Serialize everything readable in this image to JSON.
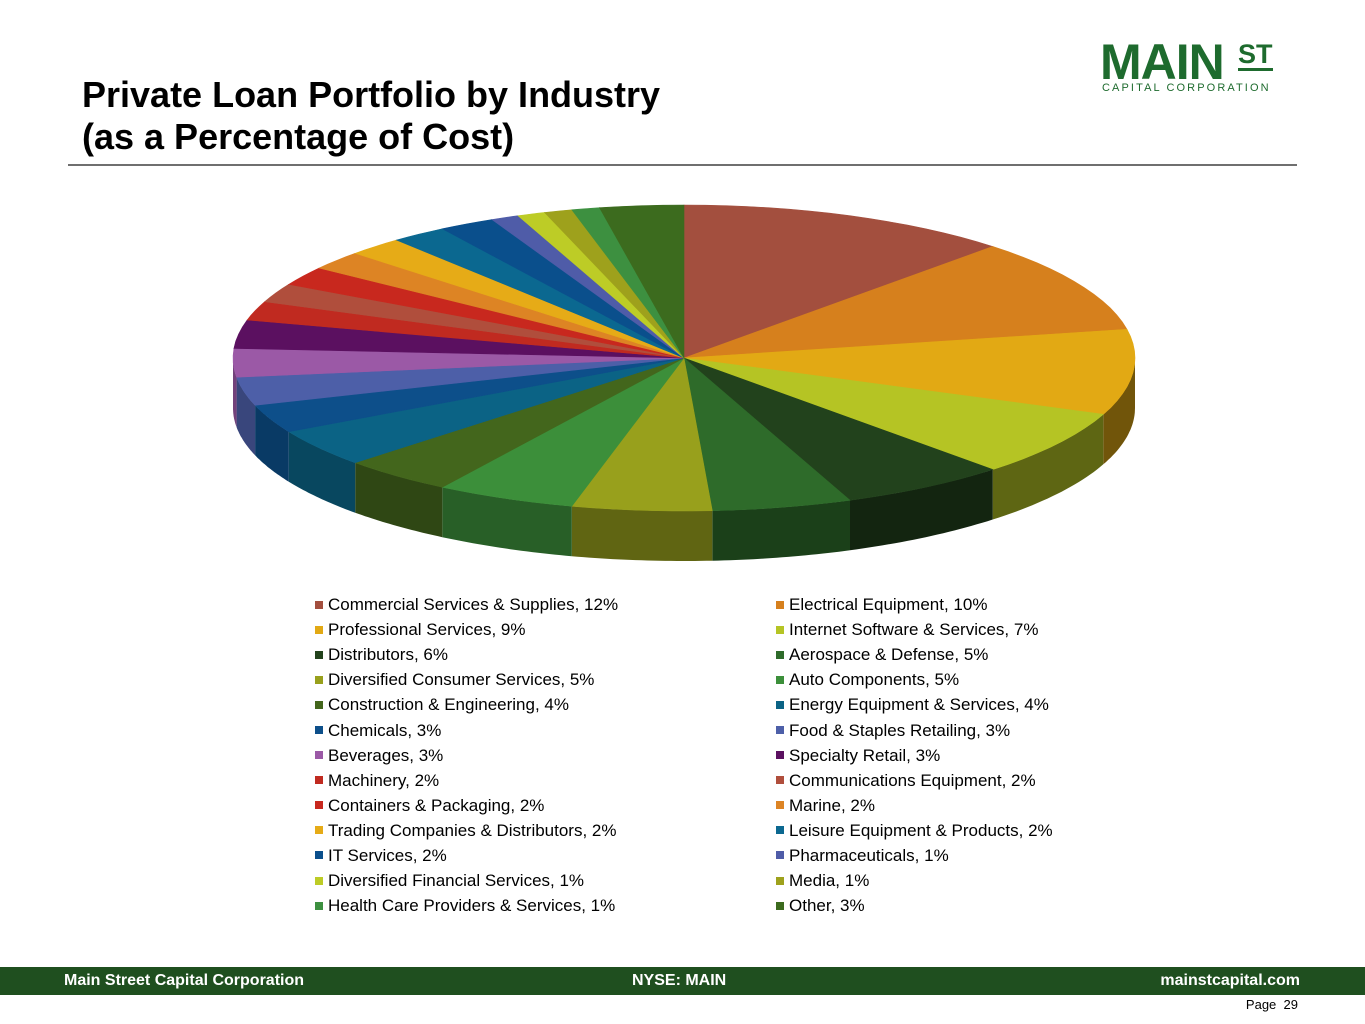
{
  "title": {
    "line1": "Private Loan Portfolio by Industry",
    "line2": "(as a Percentage of Cost)"
  },
  "logo": {
    "main": "MAIN",
    "st": "ST",
    "sub": "CAPITAL CORPORATION"
  },
  "footer": {
    "company": "Main Street Capital Corporation",
    "ticker": "NYSE: MAIN",
    "website": "mainstcapital.com",
    "page_label": "Page",
    "page_number": "29"
  },
  "chart_data": {
    "type": "pie",
    "title": "Private Loan Portfolio by Industry (as a Percentage of Cost)",
    "unit": "%",
    "legend_position": "bottom",
    "slices": [
      {
        "name": "Commercial Services & Supplies",
        "value": 12,
        "color": "#a34f3e"
      },
      {
        "name": "Electrical Equipment",
        "value": 10,
        "color": "#d6801d"
      },
      {
        "name": "Professional Services",
        "value": 9,
        "color": "#e2a914"
      },
      {
        "name": "Internet Software & Services",
        "value": 7,
        "color": "#b5c424"
      },
      {
        "name": "Distributors",
        "value": 6,
        "color": "#22421c"
      },
      {
        "name": "Aerospace & Defense",
        "value": 5,
        "color": "#2e6b2a"
      },
      {
        "name": "Diversified Consumer Services",
        "value": 5,
        "color": "#98a01c"
      },
      {
        "name": "Auto Components",
        "value": 5,
        "color": "#3c8f3a"
      },
      {
        "name": "Construction & Engineering",
        "value": 4,
        "color": "#43661c"
      },
      {
        "name": "Energy Equipment & Services",
        "value": 4,
        "color": "#0b6385"
      },
      {
        "name": "Chemicals",
        "value": 3,
        "color": "#0d4f8a"
      },
      {
        "name": "Food & Staples Retailing",
        "value": 3,
        "color": "#4d5fa8"
      },
      {
        "name": "Beverages",
        "value": 3,
        "color": "#9b59a6"
      },
      {
        "name": "Specialty Retail",
        "value": 3,
        "color": "#5b1060"
      },
      {
        "name": "Machinery",
        "value": 2,
        "color": "#c02a20"
      },
      {
        "name": "Communications Equipment",
        "value": 2,
        "color": "#b04e3c"
      },
      {
        "name": "Containers & Packaging",
        "value": 2,
        "color": "#c8281e"
      },
      {
        "name": "Marine",
        "value": 2,
        "color": "#dd8424"
      },
      {
        "name": "Trading Companies & Distributors",
        "value": 2,
        "color": "#e6ab17"
      },
      {
        "name": "Leisure Equipment & Products",
        "value": 2,
        "color": "#0b6890"
      },
      {
        "name": "IT Services",
        "value": 2,
        "color": "#0a4f8c"
      },
      {
        "name": "Pharmaceuticals",
        "value": 1,
        "color": "#4f5ca8"
      },
      {
        "name": "Diversified Financial Services",
        "value": 1,
        "color": "#bdcc26"
      },
      {
        "name": "Media",
        "value": 1,
        "color": "#9ea11c"
      },
      {
        "name": "Health Care Providers & Services",
        "value": 1,
        "color": "#3d9040"
      },
      {
        "name": "Other",
        "value": 3,
        "color": "#3c6b1e"
      }
    ],
    "legend_left": [
      {
        "label": "Commercial Services & Supplies, 12%",
        "color": "#a34f3e"
      },
      {
        "label": "Professional Services, 9%",
        "color": "#e2a914"
      },
      {
        "label": "Distributors, 6%",
        "color": "#22421c"
      },
      {
        "label": "Diversified Consumer Services, 5%",
        "color": "#98a01c"
      },
      {
        "label": "Construction & Engineering, 4%",
        "color": "#43661c"
      },
      {
        "label": "Chemicals, 3%",
        "color": "#0d4f8a"
      },
      {
        "label": "Beverages, 3%",
        "color": "#9b59a6"
      },
      {
        "label": "Machinery, 2%",
        "color": "#c02a20"
      },
      {
        "label": "Containers & Packaging, 2%",
        "color": "#c8281e"
      },
      {
        "label": "Trading Companies & Distributors, 2%",
        "color": "#e6ab17"
      },
      {
        "label": "IT Services, 2%",
        "color": "#0a4f8c"
      },
      {
        "label": "Diversified Financial Services, 1%",
        "color": "#bdcc26"
      },
      {
        "label": "Health Care Providers & Services, 1%",
        "color": "#3d9040"
      }
    ],
    "legend_right": [
      {
        "label": "Electrical Equipment, 10%",
        "color": "#d6801d"
      },
      {
        "label": "Internet Software & Services, 7%",
        "color": "#b5c424"
      },
      {
        "label": "Aerospace & Defense, 5%",
        "color": "#2e6b2a"
      },
      {
        "label": "Auto Components, 5%",
        "color": "#3c8f3a"
      },
      {
        "label": "Energy Equipment & Services, 4%",
        "color": "#0b6385"
      },
      {
        "label": "Food & Staples Retailing, 3%",
        "color": "#4d5fa8"
      },
      {
        "label": "Specialty Retail, 3%",
        "color": "#5b1060"
      },
      {
        "label": "Communications Equipment, 2%",
        "color": "#b04e3c"
      },
      {
        "label": "Marine, 2%",
        "color": "#dd8424"
      },
      {
        "label": "Leisure Equipment & Products, 2%",
        "color": "#0b6890"
      },
      {
        "label": "Pharmaceuticals, 1%",
        "color": "#4f5ca8"
      },
      {
        "label": "Media, 1%",
        "color": "#9ea11c"
      },
      {
        "label": "Other, 3%",
        "color": "#3c6b1e"
      }
    ]
  }
}
